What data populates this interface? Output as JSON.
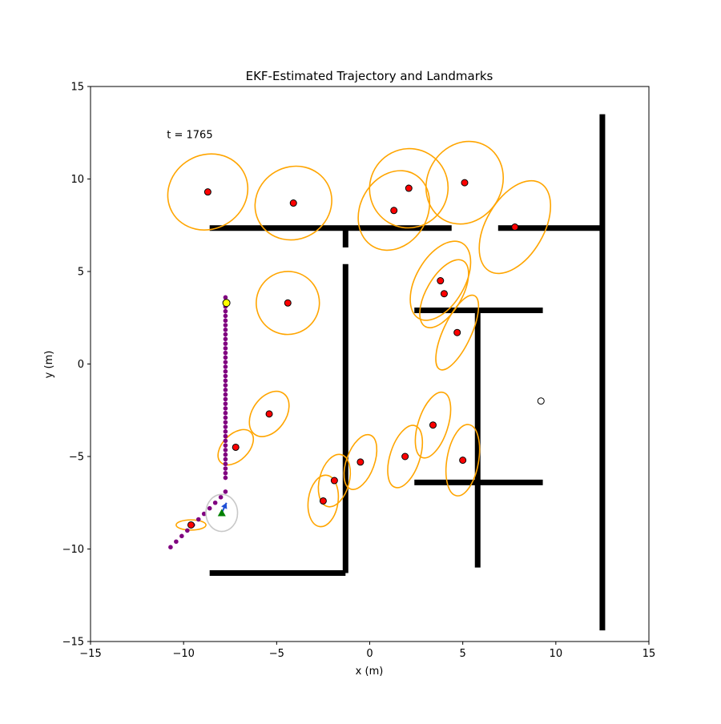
{
  "chart_data": {
    "type": "scatter",
    "title": "EKF-Estimated Trajectory and Landmarks",
    "xlabel": "x (m)",
    "ylabel": "y (m)",
    "xlim": [
      -15,
      15
    ],
    "ylim": [
      -15,
      15
    ],
    "xticks": [
      -15,
      -10,
      -5,
      0,
      5,
      10,
      15
    ],
    "yticks": [
      -15,
      -10,
      -5,
      0,
      5,
      10,
      15
    ],
    "grid": false,
    "annotation": "t = 1765",
    "annotation_pos": [
      -10.9,
      12.2
    ],
    "colors": {
      "wall": "#000000",
      "trajectory": "#800080",
      "landmark": "#ff0000",
      "ellipse": "#ffa500",
      "robot_ellipse": "#c8c8c8",
      "current_target": "#ffff00",
      "robot_arrow": "#1f4fd6",
      "robot_marker": "#008000"
    },
    "walls": [
      [
        [
          -8.6,
          7.35
        ],
        [
          4.4,
          7.35
        ]
      ],
      [
        [
          6.9,
          7.35
        ],
        [
          12.5,
          7.35
        ]
      ],
      [
        [
          -1.3,
          7.35
        ],
        [
          -1.3,
          6.3
        ]
      ],
      [
        [
          -1.3,
          5.4
        ],
        [
          -1.3,
          -11.3
        ]
      ],
      [
        [
          -8.6,
          -11.3
        ],
        [
          -1.3,
          -11.3
        ]
      ],
      [
        [
          2.4,
          2.9
        ],
        [
          9.3,
          2.9
        ]
      ],
      [
        [
          5.8,
          2.9
        ],
        [
          5.8,
          -11.0
        ]
      ],
      [
        [
          2.4,
          -6.4
        ],
        [
          9.3,
          -6.4
        ]
      ],
      [
        [
          12.5,
          13.5
        ],
        [
          12.5,
          -14.4
        ]
      ]
    ],
    "trajectory": {
      "x": [
        -7.75,
        -7.75,
        -7.75,
        -7.75,
        -7.75,
        -7.75,
        -7.75,
        -7.75,
        -7.75,
        -7.75,
        -7.75,
        -7.75,
        -7.75,
        -7.75,
        -7.75,
        -7.75,
        -7.75,
        -7.75,
        -7.75,
        -7.75,
        -7.75,
        -7.75,
        -7.75,
        -7.75,
        -7.75,
        -7.75,
        -7.75,
        -7.75,
        -7.75,
        -7.75,
        -7.75,
        -7.75,
        -7.75,
        -7.75,
        -7.75,
        -7.75,
        -7.75,
        -7.75,
        -7.75,
        -7.75,
        -7.75,
        -8.0,
        -8.3,
        -8.6,
        -8.9,
        -9.2,
        -9.5,
        -9.8,
        -10.1,
        -10.4,
        -10.7
      ],
      "y": [
        3.6,
        3.35,
        3.1,
        2.85,
        2.6,
        2.35,
        2.1,
        1.85,
        1.6,
        1.35,
        1.1,
        0.85,
        0.6,
        0.35,
        0.1,
        -0.15,
        -0.4,
        -0.65,
        -0.9,
        -1.15,
        -1.4,
        -1.65,
        -1.9,
        -2.15,
        -2.4,
        -2.65,
        -2.9,
        -3.15,
        -3.4,
        -3.65,
        -3.9,
        -4.15,
        -4.4,
        -4.65,
        -4.9,
        -5.15,
        -5.4,
        -5.65,
        -5.9,
        -6.15,
        -6.9,
        -7.2,
        -7.5,
        -7.8,
        -8.1,
        -8.4,
        -8.7,
        -9.0,
        -9.3,
        -9.6,
        -9.9
      ]
    },
    "landmarks": [
      {
        "x": -8.7,
        "y": 9.3,
        "ellipse": {
          "w": 4.4,
          "h": 4.0,
          "angle": -30
        }
      },
      {
        "x": -4.1,
        "y": 8.7,
        "ellipse": {
          "w": 4.2,
          "h": 3.9,
          "angle": -30
        }
      },
      {
        "x": 1.3,
        "y": 8.3,
        "ellipse": {
          "w": 3.6,
          "h": 4.5,
          "angle": 30
        }
      },
      {
        "x": 2.1,
        "y": 9.5,
        "ellipse": {
          "w": 4.2,
          "h": 4.3,
          "angle": 30
        }
      },
      {
        "x": 5.1,
        "y": 9.8,
        "ellipse": {
          "w": 4.0,
          "h": 4.6,
          "angle": 30
        }
      },
      {
        "x": 7.8,
        "y": 7.4,
        "ellipse": {
          "w": 3.1,
          "h": 5.5,
          "angle": 30
        }
      },
      {
        "x": 3.8,
        "y": 4.5,
        "ellipse": {
          "w": 2.6,
          "h": 4.7,
          "angle": 30
        }
      },
      {
        "x": 4.0,
        "y": 3.8,
        "ellipse": {
          "w": 1.9,
          "h": 4.1,
          "angle": 30
        }
      },
      {
        "x": 4.7,
        "y": 1.7,
        "ellipse": {
          "w": 1.5,
          "h": 4.4,
          "angle": 25
        }
      },
      {
        "x": -4.4,
        "y": 3.3,
        "ellipse": {
          "w": 3.4,
          "h": 3.4,
          "angle": -35
        }
      },
      {
        "x": -5.4,
        "y": -2.7,
        "ellipse": {
          "w": 1.8,
          "h": 2.7,
          "angle": 35
        }
      },
      {
        "x": -7.2,
        "y": -4.5,
        "ellipse": {
          "w": 1.4,
          "h": 2.3,
          "angle": 45
        }
      },
      {
        "x": -0.5,
        "y": -5.3,
        "ellipse": {
          "w": 1.5,
          "h": 3.1,
          "angle": 20
        }
      },
      {
        "x": 1.9,
        "y": -5.0,
        "ellipse": {
          "w": 1.6,
          "h": 3.5,
          "angle": 18
        }
      },
      {
        "x": 3.4,
        "y": -3.3,
        "ellipse": {
          "w": 1.6,
          "h": 3.7,
          "angle": 18
        }
      },
      {
        "x": 5.0,
        "y": -5.2,
        "ellipse": {
          "w": 1.7,
          "h": 3.9,
          "angle": 10
        }
      },
      {
        "x": -1.9,
        "y": -6.3,
        "ellipse": {
          "w": 1.6,
          "h": 2.9,
          "angle": 15
        }
      },
      {
        "x": -2.5,
        "y": -7.4,
        "ellipse": {
          "w": 1.6,
          "h": 2.8,
          "angle": 8
        }
      },
      {
        "x": -9.6,
        "y": -8.7,
        "ellipse": {
          "w": 1.6,
          "h": 0.55,
          "angle": 0
        }
      }
    ],
    "unobserved_landmarks": [
      {
        "x": 9.2,
        "y": -2.0
      }
    ],
    "current_target": {
      "x": -7.7,
      "y": 3.3
    },
    "robot": {
      "x": -7.95,
      "y": -8.05,
      "heading_deg": 65,
      "ellipse": {
        "w": 1.7,
        "h": 2.0,
        "angle": 0
      }
    }
  }
}
